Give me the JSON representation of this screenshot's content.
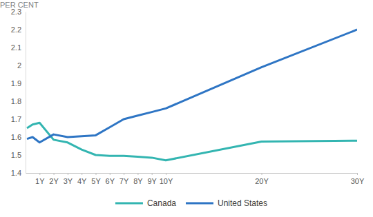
{
  "chart_data": {
    "type": "line",
    "y_label": "PER CENT",
    "x": [
      0.1,
      0.5,
      1,
      2,
      3,
      4,
      5,
      6,
      7,
      8,
      9,
      10,
      20,
      30
    ],
    "series": [
      {
        "name": "Canada",
        "color": "#33b5b1",
        "values": [
          1.65,
          1.67,
          1.68,
          1.585,
          1.57,
          1.53,
          1.5,
          1.495,
          1.495,
          1.49,
          1.485,
          1.47,
          1.575,
          1.58
        ]
      },
      {
        "name": "United States",
        "color": "#2e75c4",
        "values": [
          1.59,
          1.6,
          1.57,
          1.615,
          1.6,
          1.605,
          1.61,
          1.655,
          1.7,
          1.72,
          1.74,
          1.76,
          1.99,
          2.2
        ]
      }
    ],
    "xlim": [
      0,
      30
    ],
    "xticks": [
      {
        "value": 1,
        "label": "1Y"
      },
      {
        "value": 2,
        "label": "2Y"
      },
      {
        "value": 3,
        "label": "3Y"
      },
      {
        "value": 4,
        "label": "4Y"
      },
      {
        "value": 5,
        "label": "5Y"
      },
      {
        "value": 6,
        "label": "6Y"
      },
      {
        "value": 7,
        "label": "7Y"
      },
      {
        "value": 8,
        "label": "8Y"
      },
      {
        "value": 9,
        "label": "9Y"
      },
      {
        "value": 10,
        "label": "10Y"
      },
      {
        "value": 20,
        "label": "20Y"
      },
      {
        "value": 30,
        "label": "30Y"
      }
    ],
    "ylim": [
      1.4,
      2.3
    ],
    "yticks": [
      1.4,
      1.5,
      1.6,
      1.7,
      1.8,
      1.9,
      2,
      2.1,
      2.2,
      2.3
    ],
    "grid": false,
    "legend": "bottom",
    "marker": "none",
    "line_style": "solid"
  }
}
